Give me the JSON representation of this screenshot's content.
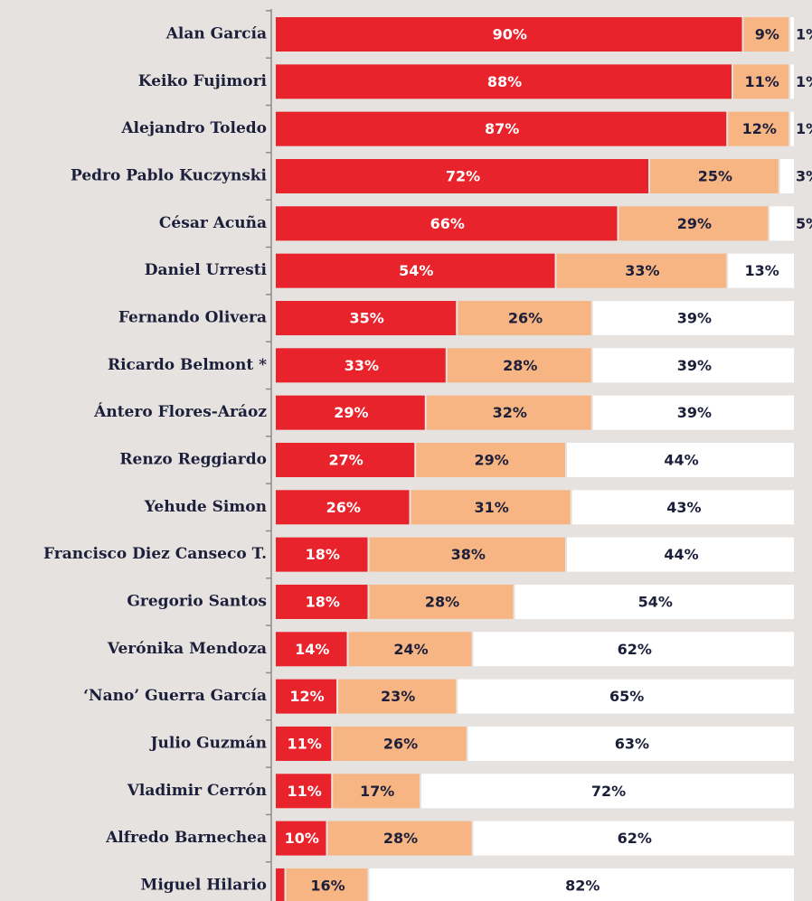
{
  "chart_data": {
    "type": "stacked-bar-horizontal",
    "categories": [
      "Alan García",
      "Keiko Fujimori",
      "Alejandro Toledo",
      "Pedro Pablo Kuczynski",
      "César Acuña",
      "Daniel Urresti",
      "Fernando Olivera",
      "Ricardo Belmont *",
      "Ántero Flores-Aráoz",
      "Renzo Reggiardo",
      "Yehude Simon",
      "Francisco Diez Canseco T.",
      "Gregorio Santos",
      "Verónika Mendoza",
      "‘Nano’ Guerra García",
      "Julio Guzmán",
      "Vladimir Cerrón",
      "Alfredo Barnechea",
      "Miguel Hilario"
    ],
    "series": [
      {
        "color": "#e8232b",
        "values": [
          90,
          88,
          87,
          72,
          66,
          54,
          35,
          33,
          29,
          27,
          26,
          18,
          18,
          14,
          12,
          11,
          11,
          10,
          2
        ],
        "value_labels": [
          "90%",
          "88%",
          "87%",
          "72%",
          "66%",
          "54%",
          "35%",
          "33%",
          "29%",
          "27%",
          "26%",
          "18%",
          "18%",
          "14%",
          "12%",
          "11%",
          "11%",
          "10%",
          "2%"
        ]
      },
      {
        "color": "#f7b583",
        "values": [
          9,
          11,
          12,
          25,
          29,
          33,
          26,
          28,
          32,
          29,
          31,
          38,
          28,
          24,
          23,
          26,
          17,
          28,
          16
        ],
        "value_labels": [
          "9%",
          "11%",
          "12%",
          "25%",
          "29%",
          "33%",
          "26%",
          "28%",
          "32%",
          "29%",
          "31%",
          "38%",
          "28%",
          "24%",
          "23%",
          "26%",
          "17%",
          "28%",
          "16%"
        ]
      },
      {
        "color": "#ffffff",
        "values": [
          1,
          1,
          1,
          3,
          5,
          13,
          39,
          39,
          39,
          44,
          43,
          44,
          54,
          62,
          65,
          63,
          72,
          62,
          82
        ],
        "value_labels": [
          "1%",
          "1%",
          "1%",
          "3%",
          "5%",
          "13%",
          "39%",
          "39%",
          "39%",
          "44%",
          "43%",
          "44%",
          "54%",
          "62%",
          "65%",
          "63%",
          "72%",
          "62%",
          "82%"
        ]
      }
    ],
    "xlim": [
      0,
      100
    ]
  }
}
